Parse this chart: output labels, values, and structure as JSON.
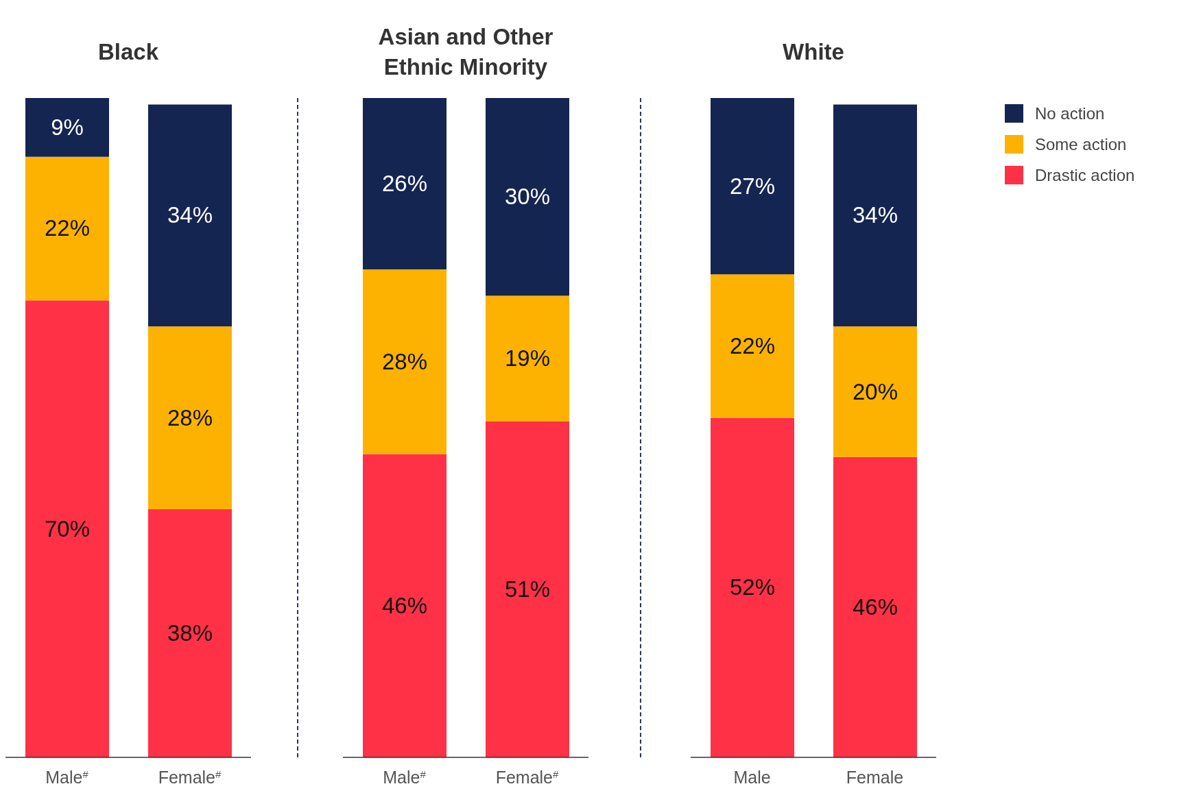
{
  "chart_data": [
    {
      "type": "bar",
      "title": "Black",
      "categories": [
        "Male$^{#}$",
        "Female$^{#}$"
      ],
      "stacked": true,
      "tick_labels": "x",
      "series": [
        {
          "color": "#fe3146",
          "values": [
            70,
            38
          ],
          "value_labels": [
            "70%",
            "38%"
          ]
        },
        {
          "color": "#fdb201",
          "values": [
            22,
            28
          ],
          "value_labels": [
            "22%",
            "28%"
          ]
        },
        {
          "color": "#152552",
          "values": [
            9,
            34
          ],
          "value_labels": [
            "9%",
            "34%"
          ]
        }
      ]
    },
    {
      "type": "bar",
      "title": "Asian and Other Ethnic Minority",
      "categories": [
        "Male$^{#}$",
        "Female$^{#}$"
      ],
      "stacked": true,
      "tick_labels": "x",
      "series": [
        {
          "color": "#fe3146",
          "values": [
            46,
            51
          ],
          "value_labels": [
            "46%",
            "51%"
          ]
        },
        {
          "color": "#fdb201",
          "values": [
            28,
            19
          ],
          "value_labels": [
            "28%",
            "19%"
          ]
        },
        {
          "color": "#152552",
          "values": [
            26,
            30
          ],
          "value_labels": [
            "26%",
            "30%"
          ]
        }
      ]
    },
    {
      "type": "bar",
      "title": "White",
      "categories": [
        "Male",
        "Female"
      ],
      "stacked": true,
      "tick_labels": "x",
      "legend": "top right",
      "series": [
        {
          "name": "Drastic action",
          "color": "#fe3146",
          "values": [
            52,
            46
          ],
          "value_labels": [
            "52%",
            "46%"
          ]
        },
        {
          "name": "Some action",
          "color": "#fdb201",
          "values": [
            22,
            20
          ],
          "value_labels": [
            "22%",
            "20%"
          ]
        },
        {
          "name": "No action",
          "color": "#152552",
          "values": [
            27,
            34
          ],
          "value_labels": [
            "27%",
            "34%"
          ]
        }
      ]
    }
  ]
}
